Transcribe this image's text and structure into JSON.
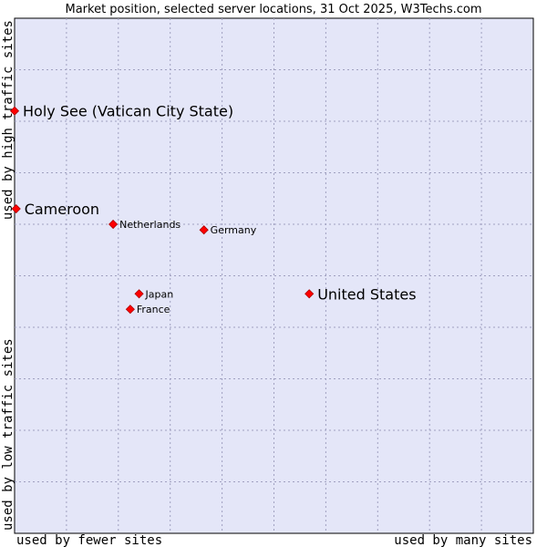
{
  "chart_data": {
    "type": "scatter",
    "title": "Market position, selected server locations, 31 Oct 2025, W3Techs.com",
    "xlabel_left": "used by fewer sites",
    "xlabel_right": "used by many sites",
    "ylabel_top": "used by high traffic sites",
    "ylabel_bottom": "used by low traffic sites",
    "xlim": [
      0,
      100
    ],
    "ylim": [
      0,
      100
    ],
    "grid": true,
    "colors": {
      "plot_background": "#e4e6f8",
      "frame": "#000000",
      "marker_fill": "#ff0000",
      "marker_stroke": "#aa0000"
    },
    "points": [
      {
        "label": "Holy See (Vatican City State)",
        "x": 0.0,
        "y": 82.0,
        "emphasis": "large"
      },
      {
        "label": "Cameroon",
        "x": 0.3,
        "y": 63.0,
        "emphasis": "large"
      },
      {
        "label": "Netherlands",
        "x": 19.0,
        "y": 60.0,
        "emphasis": "small"
      },
      {
        "label": "Germany",
        "x": 36.5,
        "y": 58.9,
        "emphasis": "small"
      },
      {
        "label": "United States",
        "x": 56.8,
        "y": 46.5,
        "emphasis": "large"
      },
      {
        "label": "Japan",
        "x": 24.0,
        "y": 46.5,
        "emphasis": "small"
      },
      {
        "label": "France",
        "x": 22.3,
        "y": 43.5,
        "emphasis": "small"
      }
    ]
  }
}
